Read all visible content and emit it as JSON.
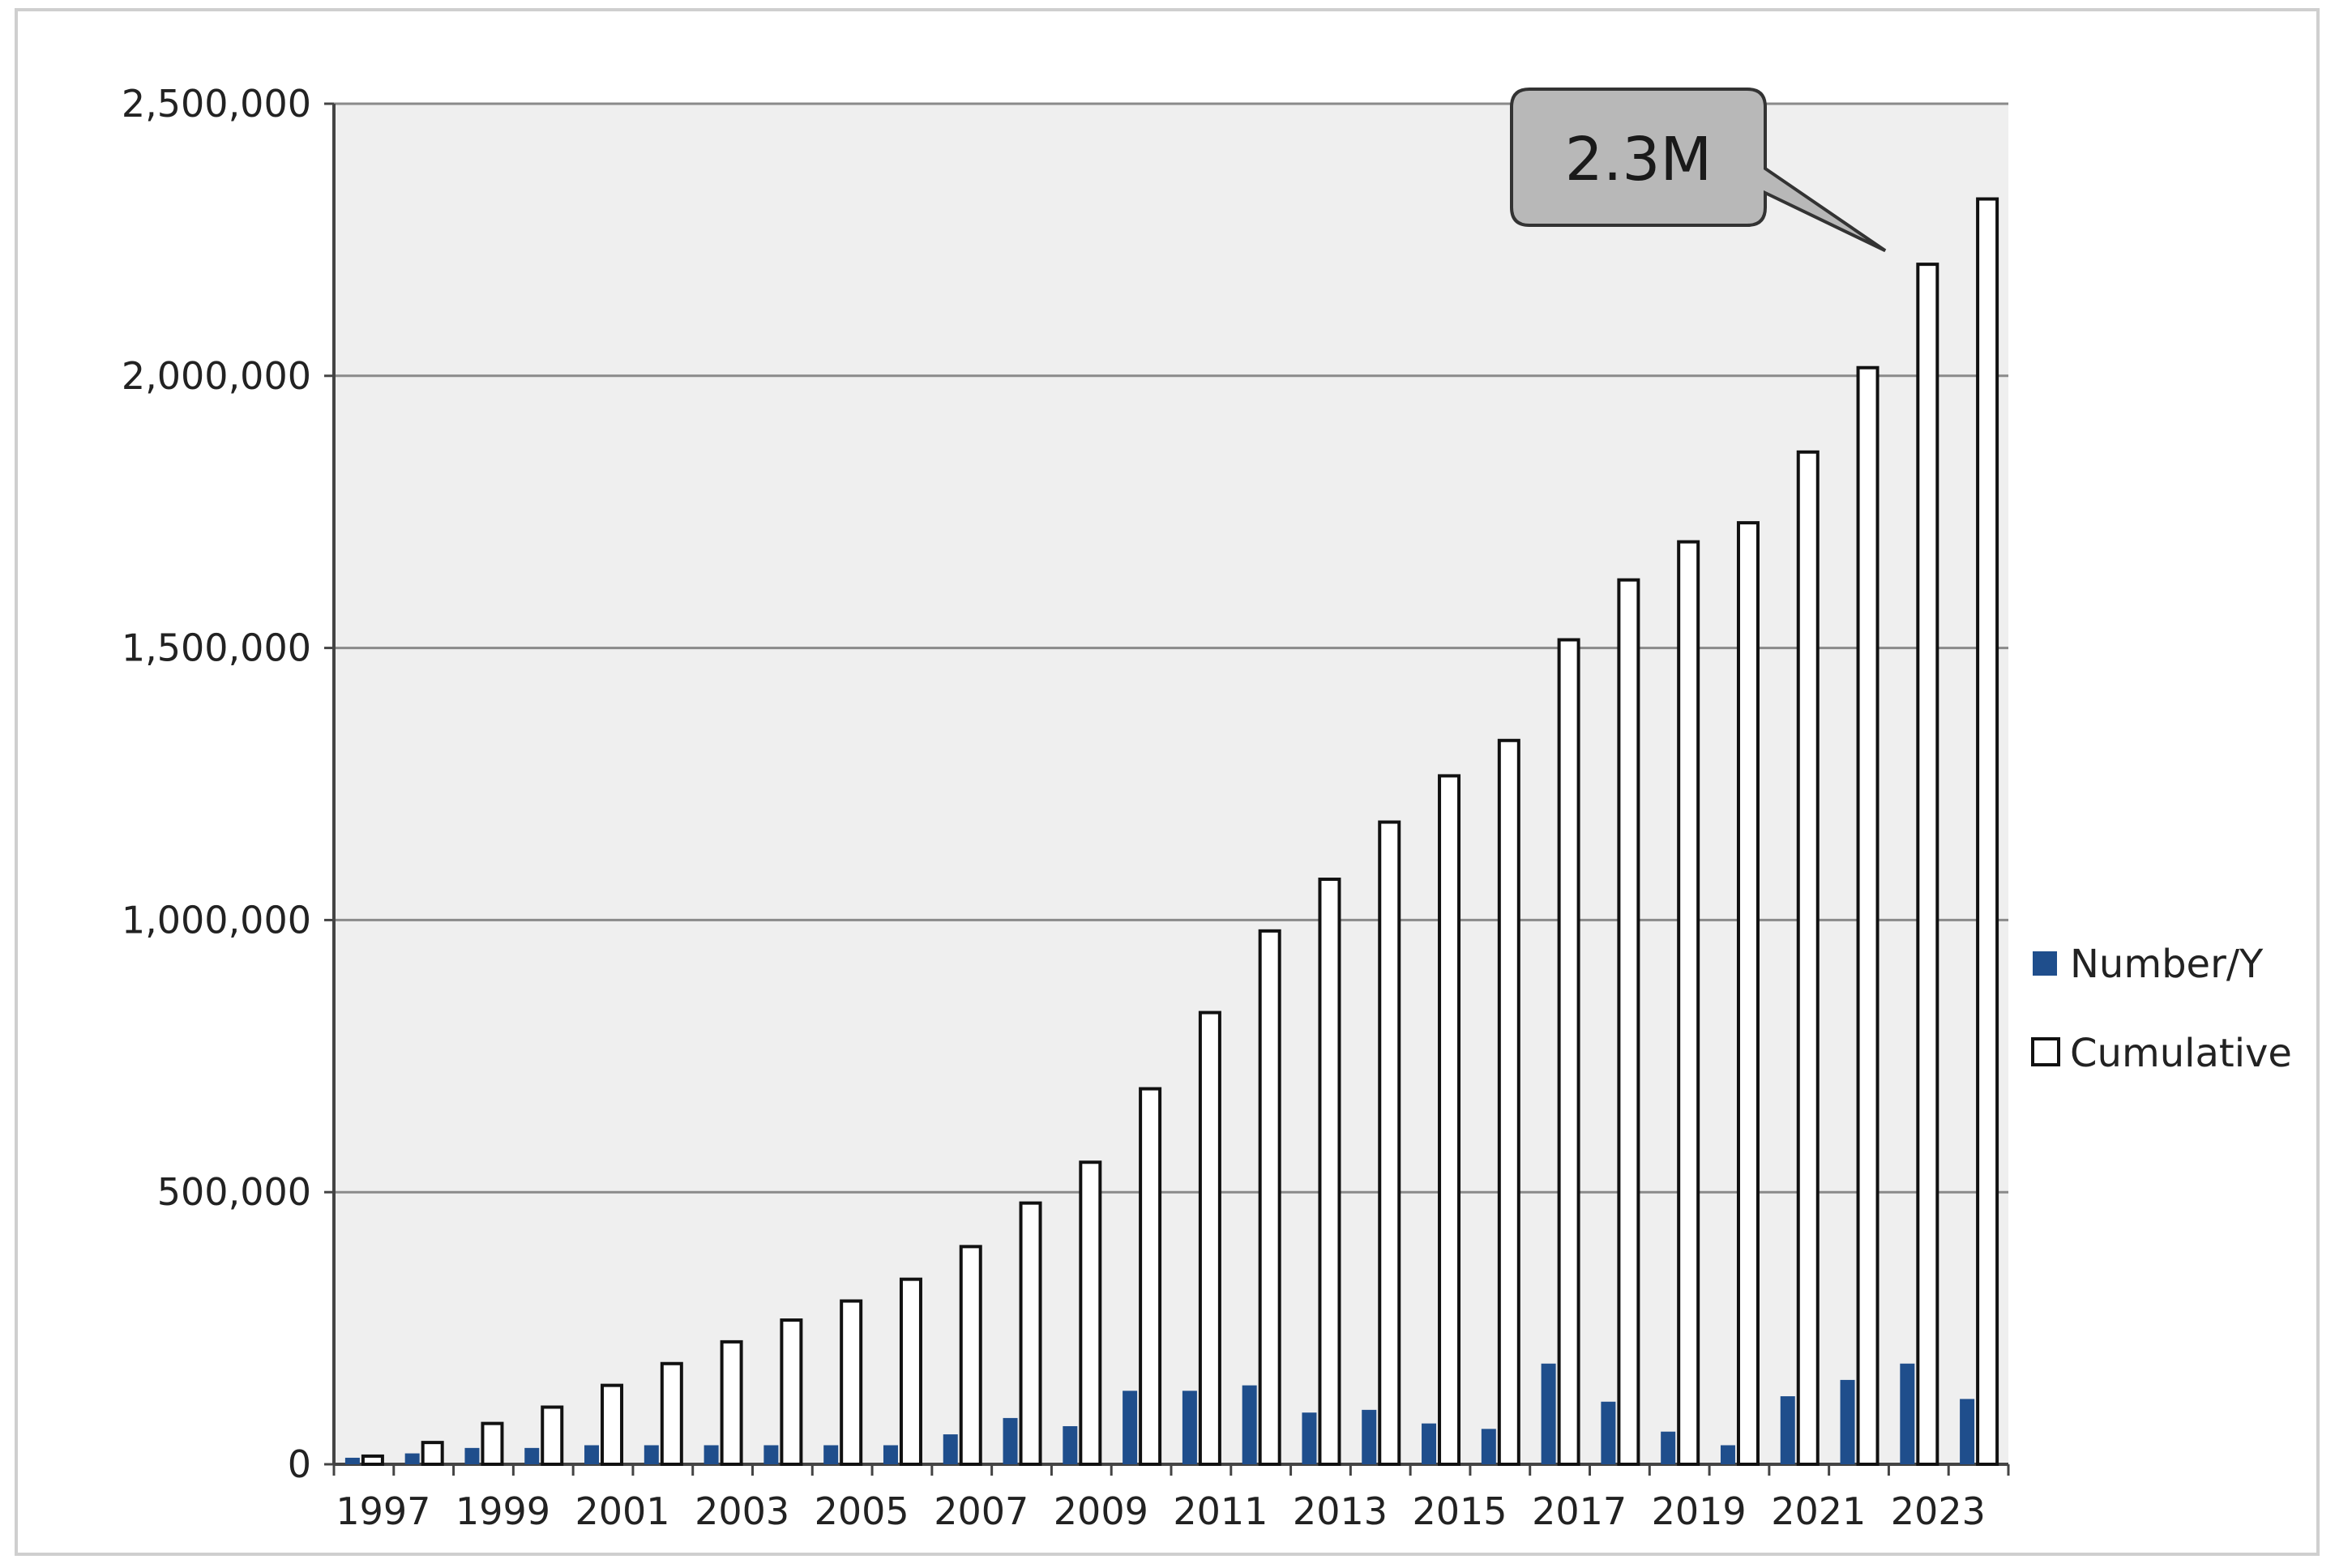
{
  "chart_data": {
    "type": "bar",
    "categories": [
      "1997",
      "1998",
      "1999",
      "2000",
      "2001",
      "2002",
      "2003",
      "2004",
      "2005",
      "2006",
      "2007",
      "2008",
      "2009",
      "2010",
      "2011",
      "2012",
      "2013",
      "2014",
      "2015",
      "2016",
      "2017",
      "2018",
      "2019",
      "2020",
      "2021",
      "2022",
      "2023",
      "2024"
    ],
    "x_tick_labels": [
      "1997",
      "1999",
      "2001",
      "2003",
      "2005",
      "2007",
      "2009",
      "2011",
      "2013",
      "2015",
      "2017",
      "2019",
      "2021",
      "2023"
    ],
    "series": [
      {
        "name": "Number/Y",
        "color": "#1f4e8c",
        "values": [
          12000,
          20000,
          30000,
          30000,
          35000,
          35000,
          35000,
          35000,
          35000,
          35000,
          55000,
          85000,
          70000,
          135000,
          135000,
          145000,
          95000,
          100000,
          75000,
          65000,
          185000,
          115000,
          60000,
          35000,
          125000,
          155000,
          185000,
          120000
        ]
      },
      {
        "name": "Cumulative",
        "color": "#ffffff",
        "values": [
          15000,
          40000,
          75000,
          105000,
          145000,
          185000,
          225000,
          265000,
          300000,
          340000,
          400000,
          480000,
          555000,
          690000,
          830000,
          980000,
          1075000,
          1180000,
          1265000,
          1330000,
          1515000,
          1625000,
          1695000,
          1730000,
          1860000,
          2015000,
          2205000,
          2325000
        ]
      }
    ],
    "y_ticks": [
      "0",
      "500,000",
      "1,000,000",
      "1,500,000",
      "2,000,000",
      "2,500,000"
    ],
    "ylim": [
      0,
      2500000
    ],
    "grid": true,
    "legend_position": "right",
    "annotations": [
      {
        "text": "2.3M",
        "target_category": "2024",
        "target_series": "Cumulative"
      }
    ],
    "title": "",
    "xlabel": "",
    "ylabel": ""
  }
}
